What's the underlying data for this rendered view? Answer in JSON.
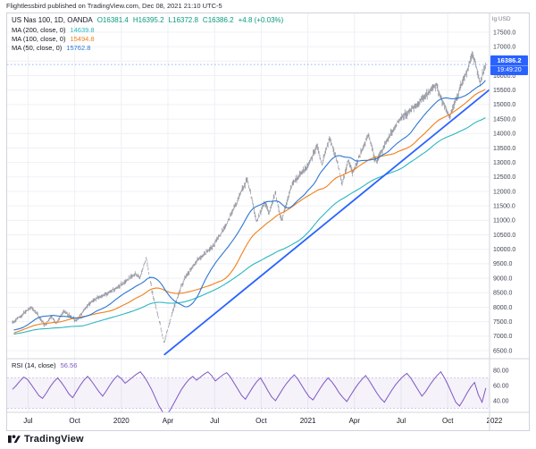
{
  "header": {
    "publish_line": "Flightlessbird published on TradingView.com, Dec 08, 2021 21:10 UTC-5"
  },
  "footer": {
    "brand": "TradingView"
  },
  "chart_data": {
    "type": "candlestick",
    "title": "US Nas 100",
    "legend": {
      "symbol_line": "US Nas 100, 1D, OANDA",
      "open": "O16381.4",
      "high": "H16395.2",
      "low": "L16372.8",
      "close": "C16386.2",
      "change": "+4.8 (+0.03%)",
      "value_color": "#089981"
    },
    "overlays": [
      {
        "label": "MA (200, close, 0)",
        "value": "14639.8",
        "period": 200,
        "color": "#2ab6bf"
      },
      {
        "label": "MA (100, close, 0)",
        "value": "15494.8",
        "period": 100,
        "color": "#ef7f1a"
      },
      {
        "label": "MA (50, close, 0)",
        "value": "15762.8",
        "period": 50,
        "color": "#2d76d2"
      }
    ],
    "trendline": {
      "t1": 9.75,
      "p1": 6350,
      "t2": 31,
      "p2": 15650,
      "color": "#2962ff"
    },
    "candle_color": "#80848e",
    "price_axis": {
      "unit": "lg USD",
      "max": 17500,
      "min": 6500,
      "labels": [
        "17500.0",
        "17000.0",
        "16500.0",
        "16000.0",
        "15500.0",
        "15000.0",
        "14500.0",
        "14000.0",
        "13500.0",
        "13000.0",
        "12500.0",
        "12000.0",
        "11500.0",
        "11000.0",
        "10500.0",
        "10000.0",
        "9500.0",
        "9000.0",
        "8500.0",
        "8000.0",
        "7500.0",
        "7000.0",
        "6500.0"
      ]
    },
    "last_price": {
      "value": 16386.2,
      "price": "16386.2",
      "countdown": "19:49:20",
      "color": "#2962ff"
    },
    "time_axis": [
      {
        "label": "Jul",
        "t": 1
      },
      {
        "label": "Oct",
        "t": 4
      },
      {
        "label": "2020",
        "t": 7
      },
      {
        "label": "Apr",
        "t": 10
      },
      {
        "label": "Jul",
        "t": 13
      },
      {
        "label": "Oct",
        "t": 16
      },
      {
        "label": "2021",
        "t": 19
      },
      {
        "label": "Apr",
        "t": 22
      },
      {
        "label": "Jul",
        "t": 25
      },
      {
        "label": "Oct",
        "t": 28
      },
      {
        "label": "2022",
        "t": 31
      }
    ],
    "prehistory": [
      [
        -5,
        6450
      ],
      [
        -3.5,
        7050
      ],
      [
        -2,
        7350
      ],
      [
        -1,
        6950
      ],
      [
        -0.4,
        7280
      ]
    ],
    "price_anchors": [
      [
        0,
        7480
      ],
      [
        1.2,
        8005
      ],
      [
        2.1,
        7380
      ],
      [
        2.5,
        7690
      ],
      [
        2.8,
        7440
      ],
      [
        3.3,
        7860
      ],
      [
        4.1,
        7520
      ],
      [
        5,
        8180
      ],
      [
        6,
        8450
      ],
      [
        7,
        8770
      ],
      [
        7.9,
        9150
      ],
      [
        8.2,
        9020
      ],
      [
        8.6,
        9720
      ],
      [
        9,
        8480
      ],
      [
        9.4,
        7620
      ],
      [
        9.75,
        6772
      ],
      [
        10.3,
        7850
      ],
      [
        11,
        8940
      ],
      [
        11.8,
        9550
      ],
      [
        12.8,
        10060
      ],
      [
        13.8,
        10880
      ],
      [
        14.8,
        12110
      ],
      [
        15.1,
        12430
      ],
      [
        15.7,
        10940
      ],
      [
        16.2,
        11620
      ],
      [
        16.5,
        11210
      ],
      [
        16.9,
        11960
      ],
      [
        17.3,
        10960
      ],
      [
        18,
        12270
      ],
      [
        19,
        12880
      ],
      [
        19.6,
        13600
      ],
      [
        19.9,
        12930
      ],
      [
        20.4,
        13880
      ],
      [
        21,
        12800
      ],
      [
        21.2,
        12210
      ],
      [
        21.6,
        13080
      ],
      [
        21.9,
        12650
      ],
      [
        22.9,
        13960
      ],
      [
        23.4,
        13010
      ],
      [
        24,
        13680
      ],
      [
        25,
        14550
      ],
      [
        26,
        14960
      ],
      [
        27.2,
        15690
      ],
      [
        28.1,
        14580
      ],
      [
        29,
        15850
      ],
      [
        29.6,
        16765
      ],
      [
        30.1,
        15720
      ],
      [
        30.45,
        16386.2
      ]
    ],
    "rsi": {
      "label": "RSI (14, close)",
      "value": "56.56",
      "color": "#7e57c2",
      "band_color": "rgba(126,87,194,0.08)",
      "level_line_color": "#c9b8ea",
      "upper": 70,
      "lower": 30,
      "levels": [
        {
          "label": "80.00",
          "v": 80
        },
        {
          "label": "60.00",
          "v": 60
        },
        {
          "label": "40.00",
          "v": 40
        }
      ],
      "values": [
        55,
        60,
        66,
        71,
        68,
        61,
        54,
        47,
        43,
        50,
        58,
        65,
        70,
        64,
        57,
        49,
        44,
        52,
        60,
        67,
        72,
        66,
        59,
        52,
        46,
        53,
        61,
        68,
        73,
        69,
        63,
        67,
        71,
        75,
        78,
        72,
        64,
        55,
        44,
        33,
        25,
        21,
        28,
        37,
        46,
        55,
        62,
        68,
        72,
        67,
        71,
        75,
        78,
        73,
        66,
        70,
        74,
        77,
        71,
        63,
        55,
        47,
        42,
        50,
        58,
        65,
        70,
        62,
        53,
        45,
        40,
        48,
        56,
        63,
        69,
        74,
        68,
        60,
        52,
        45,
        41,
        49,
        57,
        64,
        70,
        65,
        58,
        50,
        44,
        39,
        47,
        55,
        62,
        68,
        73,
        66,
        58,
        50,
        43,
        38,
        46,
        54,
        61,
        67,
        72,
        76,
        70,
        62,
        54,
        46,
        52,
        60,
        67,
        73,
        78,
        70,
        60,
        49,
        38,
        33,
        41,
        50,
        58,
        64,
        48,
        38,
        56.56
      ]
    }
  }
}
